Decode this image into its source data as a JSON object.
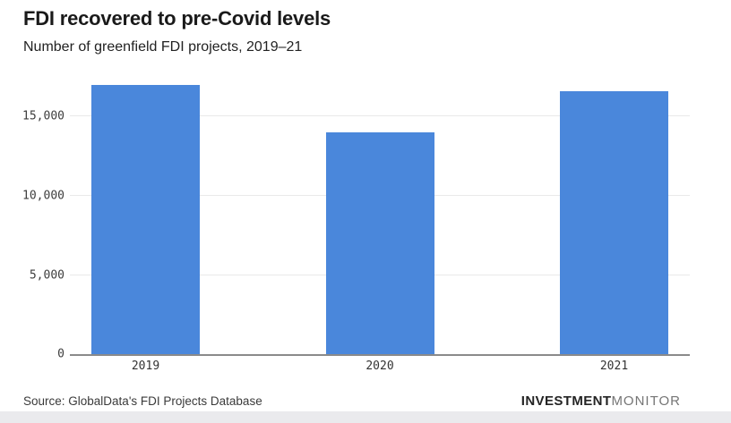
{
  "header": {
    "title": "FDI recovered to pre-Covid levels",
    "subtitle": "Number of greenfield FDI projects, 2019–21"
  },
  "chart_data": {
    "type": "bar",
    "categories": [
      "2019",
      "2020",
      "2021"
    ],
    "values": [
      17000,
      14000,
      16600
    ],
    "title": "FDI recovered to pre-Covid levels",
    "subtitle": "Number of greenfield FDI projects, 2019–21",
    "xlabel": "",
    "ylabel": "",
    "ylim": [
      0,
      17400
    ],
    "y_ticks": [
      {
        "value": 0,
        "label": "0"
      },
      {
        "value": 5000,
        "label": "5,000"
      },
      {
        "value": 10000,
        "label": "10,000"
      },
      {
        "value": 15000,
        "label": "15,000"
      }
    ],
    "grid": true,
    "legend": false,
    "bar_color": "#4a87db",
    "gridline_color": "#e9e9e9",
    "axis_line_color": "#8a8a8a"
  },
  "footer": {
    "source": "Source: GlobalData's FDI Projects Database",
    "brand_bold": "INVESTMENT",
    "brand_light": "MONITOR"
  }
}
